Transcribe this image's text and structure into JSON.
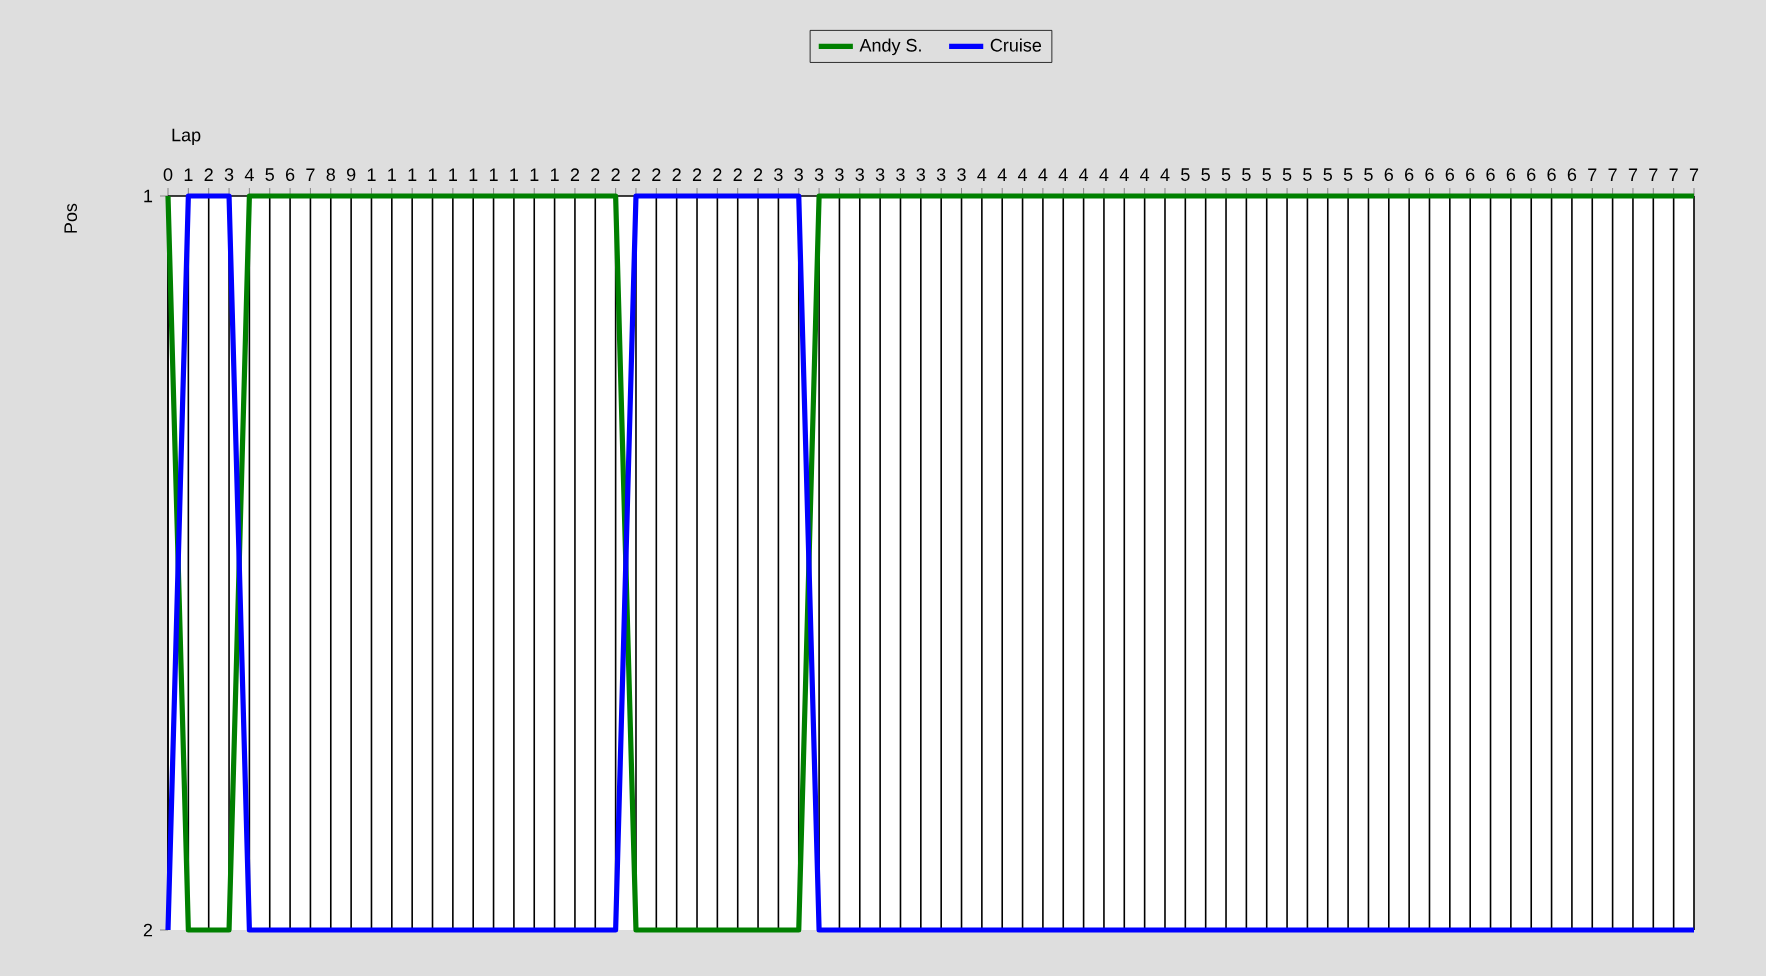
{
  "chart_data": {
    "type": "line",
    "xlabel": "Lap",
    "ylabel": "Pos",
    "categories": [
      "0",
      "1",
      "2",
      "3",
      "4",
      "5",
      "6",
      "7",
      "8",
      "9",
      "1",
      "1",
      "1",
      "1",
      "1",
      "1",
      "1",
      "1",
      "1",
      "1",
      "2",
      "2",
      "2",
      "2",
      "2",
      "2",
      "2",
      "2",
      "2",
      "2",
      "3",
      "3",
      "3",
      "3",
      "3",
      "3",
      "3",
      "3",
      "3",
      "3",
      "4",
      "4",
      "4",
      "4",
      "4",
      "4",
      "4",
      "4",
      "4",
      "4",
      "5",
      "5",
      "5",
      "5",
      "5",
      "5",
      "5",
      "5",
      "5",
      "5",
      "6",
      "6",
      "6",
      "6",
      "6",
      "6",
      "6",
      "6",
      "6",
      "6",
      "7",
      "7",
      "7",
      "7",
      "7",
      "7"
    ],
    "series": [
      {
        "name": "Andy S.",
        "color": "#008000",
        "values": [
          1,
          2,
          2,
          2,
          1,
          1,
          1,
          1,
          1,
          1,
          1,
          1,
          1,
          1,
          1,
          1,
          1,
          1,
          1,
          1,
          1,
          1,
          1,
          2,
          2,
          2,
          2,
          2,
          2,
          2,
          2,
          2,
          1,
          1,
          1,
          1,
          1,
          1,
          1,
          1,
          1,
          1,
          1,
          1,
          1,
          1,
          1,
          1,
          1,
          1,
          1,
          1,
          1,
          1,
          1,
          1,
          1,
          1,
          1,
          1,
          1,
          1,
          1,
          1,
          1,
          1,
          1,
          1,
          1,
          1,
          1,
          1,
          1,
          1,
          1,
          1
        ]
      },
      {
        "name": "Cruise",
        "color": "#0000ff",
        "values": [
          2,
          1,
          1,
          1,
          2,
          2,
          2,
          2,
          2,
          2,
          2,
          2,
          2,
          2,
          2,
          2,
          2,
          2,
          2,
          2,
          2,
          2,
          2,
          1,
          1,
          1,
          1,
          1,
          1,
          1,
          1,
          1,
          2,
          2,
          2,
          2,
          2,
          2,
          2,
          2,
          2,
          2,
          2,
          2,
          2,
          2,
          2,
          2,
          2,
          2,
          2,
          2,
          2,
          2,
          2,
          2,
          2,
          2,
          2,
          2,
          2,
          2,
          2,
          2,
          2,
          2,
          2,
          2,
          2,
          2,
          2,
          2,
          2,
          2,
          2,
          2
        ]
      }
    ],
    "ylim": [
      2,
      1
    ],
    "yticks": [
      1,
      2
    ],
    "grid": "x",
    "legend": "top",
    "marker": "none",
    "line_style": "solid"
  }
}
